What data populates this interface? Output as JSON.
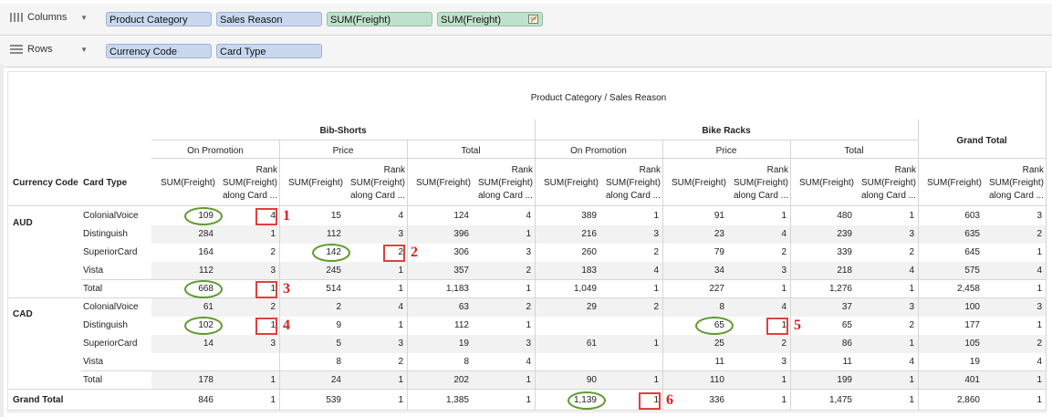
{
  "columns_shelf": {
    "label": "Columns",
    "pills": [
      {
        "text": "Product Category",
        "color": "blue"
      },
      {
        "text": "Sales Reason",
        "color": "blue"
      },
      {
        "text": "SUM(Freight)",
        "color": "green"
      },
      {
        "text": "SUM(Freight)",
        "color": "green",
        "icon": "edit-calc-icon"
      }
    ]
  },
  "rows_shelf": {
    "label": "Rows",
    "pills": [
      {
        "text": "Currency Code",
        "color": "blue"
      },
      {
        "text": "Card Type",
        "color": "blue"
      }
    ]
  },
  "crosstab": {
    "title": "Product Category / Sales Reason",
    "grand_total_col": "Grand Total",
    "row_headers": [
      "Currency Code",
      "Card Type"
    ],
    "categories": [
      {
        "name": "Bib-Shorts",
        "reasons": [
          "On Promotion",
          "Price",
          "Total"
        ]
      },
      {
        "name": "Bike Racks",
        "reasons": [
          "On Promotion",
          "Price",
          "Total"
        ]
      }
    ],
    "measure_header": "SUM(Freight)",
    "rank_header": [
      "Rank",
      "SUM(Freight)",
      "along Card ..."
    ],
    "rows": [
      {
        "currency": "AUD",
        "card": "ColonialVoice",
        "values": [
          "109",
          "4",
          "15",
          "4",
          "124",
          "4",
          "389",
          "1",
          "91",
          "1",
          "480",
          "1",
          "603",
          "3"
        ]
      },
      {
        "currency": "",
        "card": "Distinguish",
        "values": [
          "284",
          "1",
          "112",
          "3",
          "396",
          "1",
          "216",
          "3",
          "23",
          "4",
          "239",
          "3",
          "635",
          "2"
        ]
      },
      {
        "currency": "",
        "card": "SuperiorCard",
        "values": [
          "164",
          "2",
          "142",
          "2",
          "306",
          "3",
          "260",
          "2",
          "79",
          "2",
          "339",
          "2",
          "645",
          "1"
        ]
      },
      {
        "currency": "",
        "card": "Vista",
        "values": [
          "112",
          "3",
          "245",
          "1",
          "357",
          "2",
          "183",
          "4",
          "34",
          "3",
          "218",
          "4",
          "575",
          "4"
        ]
      },
      {
        "currency": "",
        "card": "Total",
        "values": [
          "668",
          "1",
          "514",
          "1",
          "1,183",
          "1",
          "1,049",
          "1",
          "227",
          "1",
          "1,276",
          "1",
          "2,458",
          "1"
        ]
      },
      {
        "currency": "CAD",
        "card": "ColonialVoice",
        "values": [
          "61",
          "2",
          "2",
          "4",
          "63",
          "2",
          "29",
          "2",
          "8",
          "4",
          "37",
          "3",
          "100",
          "3"
        ]
      },
      {
        "currency": "",
        "card": "Distinguish",
        "values": [
          "102",
          "1",
          "9",
          "1",
          "112",
          "1",
          "",
          "",
          "65",
          "1",
          "65",
          "2",
          "177",
          "1"
        ]
      },
      {
        "currency": "",
        "card": "SuperiorCard",
        "values": [
          "14",
          "3",
          "5",
          "3",
          "19",
          "3",
          "61",
          "1",
          "25",
          "2",
          "86",
          "1",
          "105",
          "2"
        ]
      },
      {
        "currency": "",
        "card": "Vista",
        "values": [
          "",
          "",
          "8",
          "2",
          "8",
          "4",
          "",
          "",
          "11",
          "3",
          "11",
          "4",
          "19",
          "4"
        ]
      },
      {
        "currency": "",
        "card": "Total",
        "values": [
          "178",
          "1",
          "24",
          "1",
          "202",
          "1",
          "90",
          "1",
          "110",
          "1",
          "199",
          "1",
          "401",
          "1"
        ]
      },
      {
        "currency": "Grand Total",
        "card": "",
        "values": [
          "846",
          "1",
          "539",
          "1",
          "1,385",
          "1",
          "1,139",
          "1",
          "336",
          "1",
          "1,475",
          "1",
          "2,860",
          "1"
        ]
      }
    ]
  },
  "annotations": [
    {
      "label": "1",
      "row": 0,
      "col": 0
    },
    {
      "label": "2",
      "row": 2,
      "col": 2
    },
    {
      "label": "3",
      "row": 4,
      "col": 0
    },
    {
      "label": "4",
      "row": 6,
      "col": 0
    },
    {
      "label": "5",
      "row": 6,
      "col": 8
    },
    {
      "label": "6",
      "row": 10,
      "col": 6
    }
  ],
  "colors": {
    "pill_blue": "#c9d8ee",
    "pill_green": "#bfe0cc",
    "oval": "#5e9a2d",
    "box": "#e04040"
  }
}
